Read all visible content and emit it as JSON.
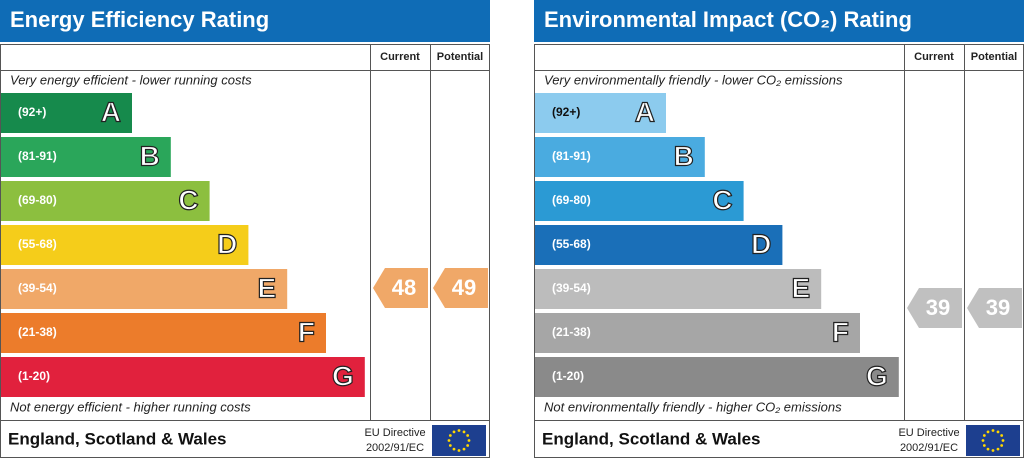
{
  "panels": [
    {
      "title": "Energy Efficiency Rating",
      "columns": [
        "Current",
        "Potential"
      ],
      "top_note": "Very energy efficient - lower running costs",
      "bottom_note": "Not energy efficient - higher running costs",
      "bands": [
        {
          "range": "(92+)",
          "letter": "A",
          "color": "#168a4c"
        },
        {
          "range": "(81-91)",
          "letter": "B",
          "color": "#2aa65a"
        },
        {
          "range": "(69-80)",
          "letter": "C",
          "color": "#8cbf3f"
        },
        {
          "range": "(55-68)",
          "letter": "D",
          "color": "#f5cd1a"
        },
        {
          "range": "(39-54)",
          "letter": "E",
          "color": "#f0a868"
        },
        {
          "range": "(21-38)",
          "letter": "F",
          "color": "#ec7c2b"
        },
        {
          "range": "(1-20)",
          "letter": "G",
          "color": "#e1213d"
        }
      ],
      "current": 48,
      "potential": 49,
      "indicator_color": "#f0a868",
      "footer": "England, Scotland & Wales",
      "directive": [
        "EU Directive",
        "2002/91/EC"
      ]
    },
    {
      "title": "Environmental Impact (CO₂) Rating",
      "columns": [
        "Current",
        "Potential"
      ],
      "top_note": "Very environmentally friendly - lower CO₂ emissions",
      "bottom_note": "Not environmentally friendly - higher CO₂ emissions",
      "bands": [
        {
          "range": "(92+)",
          "letter": "A",
          "color": "#8ccbee"
        },
        {
          "range": "(81-91)",
          "letter": "B",
          "color": "#4aabe0"
        },
        {
          "range": "(69-80)",
          "letter": "C",
          "color": "#2b9ad4"
        },
        {
          "range": "(55-68)",
          "letter": "D",
          "color": "#1a6fb8"
        },
        {
          "range": "(39-54)",
          "letter": "E",
          "color": "#bcbcbc"
        },
        {
          "range": "(21-38)",
          "letter": "F",
          "color": "#a6a6a6"
        },
        {
          "range": "(1-20)",
          "letter": "G",
          "color": "#8a8a8a"
        }
      ],
      "current": 39,
      "potential": 39,
      "indicator_color": "#c0c0c0",
      "footer": "England, Scotland & Wales",
      "directive": [
        "EU Directive",
        "2002/91/EC"
      ]
    }
  ]
}
